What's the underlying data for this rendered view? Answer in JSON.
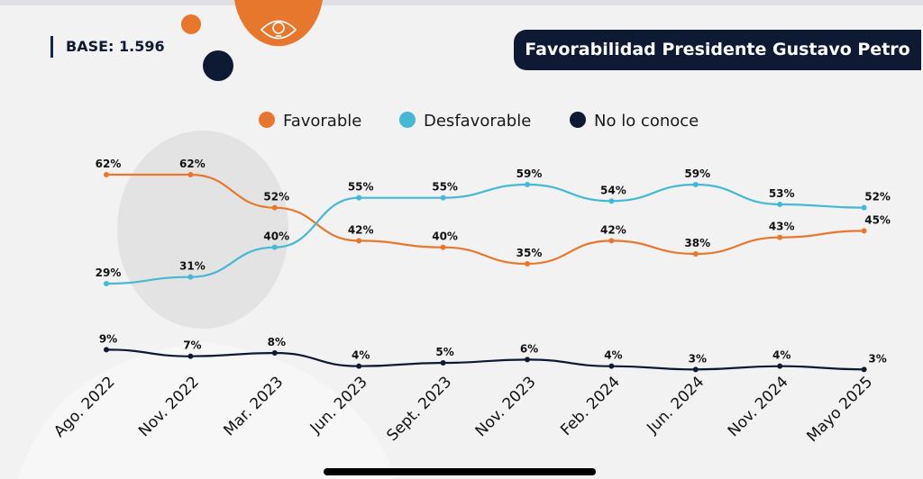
{
  "base_label": "BASE: 1.596",
  "chart_data": {
    "type": "line",
    "title": "Favorabilidad Presidente Gustavo Petro",
    "categories": [
      "Ago. 2022",
      "Nov. 2022",
      "Mar. 2023",
      "Jun. 2023",
      "Sept. 2023",
      "Nov. 2023",
      "Feb. 2024",
      "Jun. 2024",
      "Nov. 2024",
      "Mayo 2025"
    ],
    "series": [
      {
        "name": "Favorable",
        "color": "#e8772e",
        "values": [
          62,
          62,
          52,
          42,
          40,
          35,
          42,
          38,
          43,
          45
        ]
      },
      {
        "name": "Desfavorable",
        "color": "#45b8d4",
        "values": [
          29,
          31,
          40,
          55,
          55,
          59,
          54,
          59,
          53,
          52
        ]
      },
      {
        "name": "No lo conoce",
        "color": "#0e1a33",
        "values": [
          9,
          7,
          8,
          4,
          5,
          6,
          4,
          3,
          4,
          3
        ]
      }
    ],
    "unit": "%",
    "legend_position": "top",
    "grid": false,
    "yaxis_visible": false
  },
  "colors": {
    "navy": "#0e1a33",
    "orange": "#e8772e",
    "cyan": "#45b8d4"
  },
  "icons": [
    "eye-lightbulb-icon"
  ]
}
